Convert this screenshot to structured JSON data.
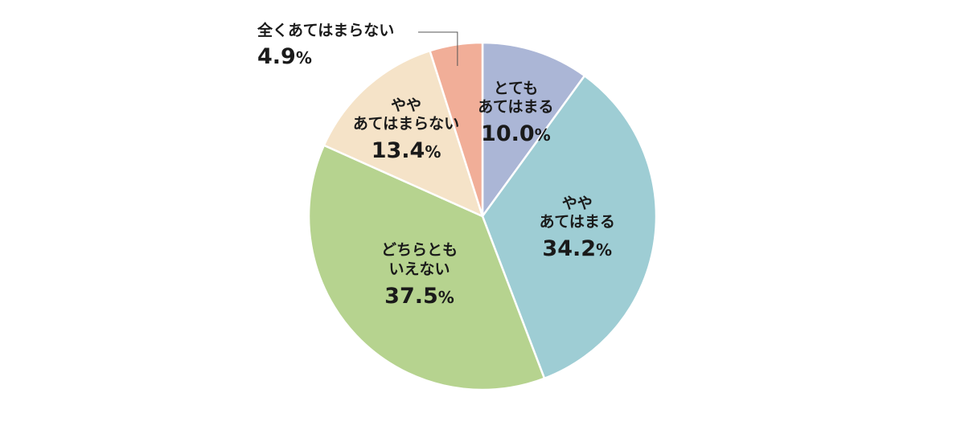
{
  "chart_data": {
    "type": "pie",
    "start_angle": "12 o'clock",
    "direction": "clockwise",
    "unit": "%",
    "slices": [
      {
        "label": [
          "とても",
          "あてはまる"
        ],
        "value": 10.0,
        "value_text": "10.0",
        "color": "#abb6d6"
      },
      {
        "label": [
          "やや",
          "あてはまる"
        ],
        "value": 34.2,
        "value_text": "34.2",
        "color": "#9ecdd4"
      },
      {
        "label": [
          "どちらとも",
          "いえない"
        ],
        "value": 37.5,
        "value_text": "37.5",
        "color": "#b6d38f"
      },
      {
        "label": [
          "やや",
          "あてはまらない"
        ],
        "value": 13.4,
        "value_text": "13.4",
        "color": "#f5e3c8"
      },
      {
        "label": [
          "全くあてはまらない"
        ],
        "value": 4.9,
        "value_text": "4.9",
        "color": "#f1ae98"
      }
    ]
  }
}
